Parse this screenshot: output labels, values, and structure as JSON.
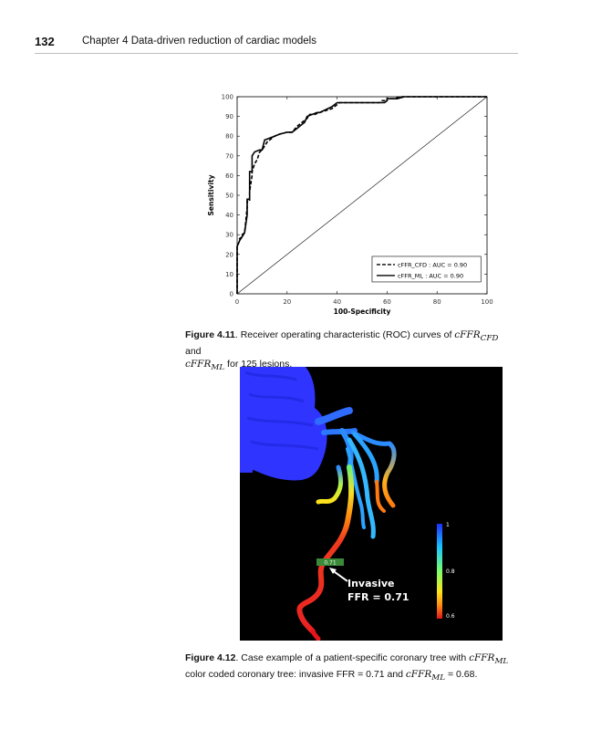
{
  "header": {
    "page_number": "132",
    "chapter_title": "Chapter 4 Data-driven reduction of cardiac models"
  },
  "chart_data": {
    "type": "line",
    "xlabel": "100-Specificity",
    "ylabel": "Sensitivity",
    "xlim": [
      0,
      100
    ],
    "ylim": [
      0,
      100
    ],
    "xticks": [
      0,
      20,
      40,
      60,
      80,
      100
    ],
    "yticks": [
      0,
      10,
      20,
      30,
      40,
      50,
      60,
      70,
      80,
      90,
      100
    ],
    "legend_position": "bottom-right",
    "series": [
      {
        "name": "cFFR_CFD : AUC = 0.90",
        "style": "dashed",
        "x": [
          0,
          0,
          1,
          1,
          2,
          2,
          3,
          4,
          4,
          5,
          5,
          6,
          6,
          7,
          8,
          9,
          10,
          12,
          15,
          17,
          20,
          22,
          24,
          26,
          27,
          28,
          29,
          31,
          33,
          38,
          40,
          41,
          50,
          57,
          58,
          60,
          60,
          61,
          63,
          65,
          100
        ],
        "y": [
          0,
          24,
          27,
          28,
          29,
          30,
          31,
          44,
          47,
          47,
          52,
          60,
          62,
          66,
          68,
          72,
          73,
          77,
          80,
          81,
          82,
          82,
          85,
          87,
          88,
          89,
          91,
          91,
          92,
          94,
          96,
          97,
          97,
          97,
          98,
          98,
          99,
          99,
          99,
          100,
          100
        ]
      },
      {
        "name": "cFFR_ML : AUC = 0.90",
        "style": "solid",
        "x": [
          0,
          0,
          1,
          2,
          3,
          4,
          4,
          5,
          5,
          6,
          6,
          7,
          9,
          10,
          11,
          15,
          17,
          20,
          22,
          24,
          26,
          27,
          28,
          32,
          33,
          38,
          39,
          40,
          59,
          60,
          60,
          62,
          64,
          67,
          70,
          100
        ],
        "y": [
          0,
          24,
          27,
          29,
          31,
          40,
          48,
          48,
          62,
          62,
          70,
          72,
          73,
          73,
          78,
          80,
          81,
          82,
          82,
          84,
          86,
          87,
          90,
          92,
          92,
          95,
          96,
          97,
          97,
          98,
          99,
          99,
          99,
          100,
          100,
          100
        ]
      },
      {
        "name": "",
        "style": "reference",
        "x": [
          0,
          100
        ],
        "y": [
          0,
          100
        ]
      }
    ]
  },
  "figure1_caption": {
    "label": "Figure 4.11",
    "text_before": ". Receiver operating characteristic (ROC) curves of ",
    "var1": "cFFR",
    "sub1": "CFD",
    "text_mid": " and ",
    "var2": "cFFR",
    "sub2": "ML",
    "text_after": " for 125 lesions."
  },
  "figure2": {
    "colorbar_ticks": [
      "1",
      "0.8",
      "0.6"
    ],
    "annotation_line1": "Invasive",
    "annotation_line2": "FFR = 0.71",
    "tag_value": "0.71",
    "colors": {
      "vessel_high": "#1f55ff",
      "vessel_low": "#ef2323",
      "background": "#000000"
    }
  },
  "figure2_caption": {
    "label": "Figure 4.12",
    "text_before": ". Case example of a patient-specific coronary tree with ",
    "var1": "cFFR",
    "sub1": "ML",
    "line2_before": "color coded coronary tree: invasive FFR = 0.71 and ",
    "var2": "cFFR",
    "sub2": "ML",
    "line2_after": " = 0.68."
  }
}
